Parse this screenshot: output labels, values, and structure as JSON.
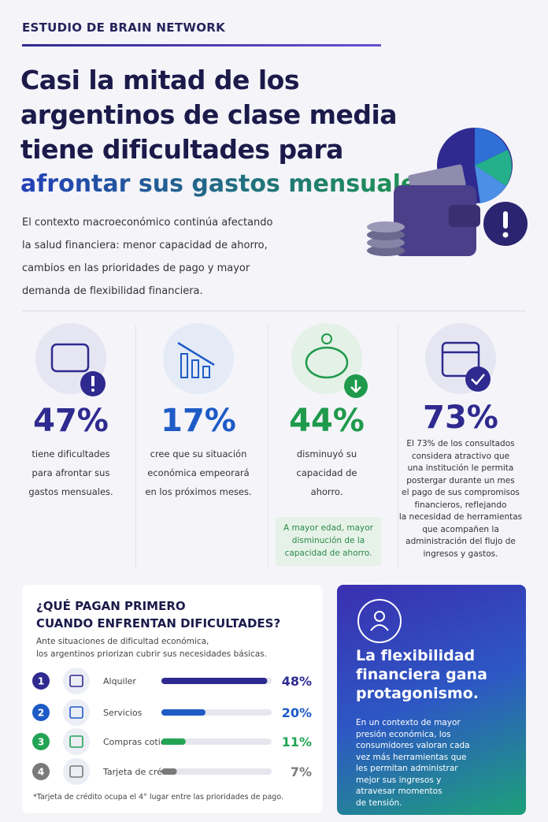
{
  "header": {
    "kicker": "ESTUDIO DE BRAIN NETWORK",
    "title_lines": [
      "Casi la mitad de los",
      "argentinos de clase media",
      "tiene dificultades para"
    ],
    "title_highlight": "afrontar sus gastos mensuales.",
    "intro_lines": [
      "El contexto macroeconómico continúa afectando",
      "la salud financiera: menor capacidad de ahorro,",
      "cambios en las prioridades de pago y mayor",
      "demanda de flexibilidad financiera."
    ]
  },
  "stats": [
    {
      "value": "47%",
      "color": "#2e2a8f",
      "lines": [
        "tiene dificultades",
        "para afrontar sus",
        "gastos mensuales."
      ]
    },
    {
      "value": "17%",
      "color": "#1e5bc6",
      "lines": [
        "cree que su situación",
        "económica empeorará",
        "en los próximos meses."
      ]
    },
    {
      "value": "44%",
      "color": "#1f9a4c",
      "lines": [
        "disminuyó su",
        "capacidad de",
        "ahorro."
      ],
      "note_lines": [
        "A mayor edad, mayor",
        "disminución de la",
        "capacidad de ahorro."
      ]
    },
    {
      "value": "73%",
      "color": "#2e2a8f",
      "lines": [
        "El 73% de los consultados",
        "considera atractivo que",
        "una institución le permita",
        "postergar durante un mes",
        "el pago de sus compromisos",
        "financieros, reflejando",
        "la necesidad de herramientas",
        "que acompañen la",
        "administración del flujo de",
        "ingresos y gastos."
      ]
    }
  ],
  "priorities": {
    "title_lines": [
      "¿QUÉ PAGAN PRIMERO",
      "CUANDO ENFRENTAN DIFICULTADES?"
    ],
    "subtitle_lines": [
      "Ante situaciones de dificultad económica,",
      "los argentinos priorizan cubrir sus necesidades básicas."
    ],
    "xlim": [
      0,
      50
    ],
    "items": [
      {
        "rank": "1",
        "label": "Alquiler",
        "value": 48,
        "value_label": "48%",
        "color": "#2e2a8f"
      },
      {
        "rank": "2",
        "label": "Servicios",
        "value": 20,
        "value_label": "20%",
        "color": "#1e5bc6"
      },
      {
        "rank": "3",
        "label": "Compras cotidianas",
        "value": 11,
        "value_label": "11%",
        "color": "#22a455"
      },
      {
        "rank": "4",
        "label": "Tarjeta de crédito*",
        "value": 7,
        "value_label": "7%",
        "color": "#7a7a7a"
      }
    ],
    "footnote": "*Tarjeta de crédito ocupa el 4° lugar entre las prioridades de pago."
  },
  "card": {
    "heading_lines": [
      "La flexibilidad",
      "financiera gana",
      "protagonismo."
    ],
    "body_lines": [
      "En un contexto de mayor",
      "presión económica, los",
      "consumidores valoran cada",
      "vez más herramientas que",
      "les permitan administrar",
      "mejor sus ingresos y",
      "atravesar momentos",
      "de tensión."
    ]
  }
}
